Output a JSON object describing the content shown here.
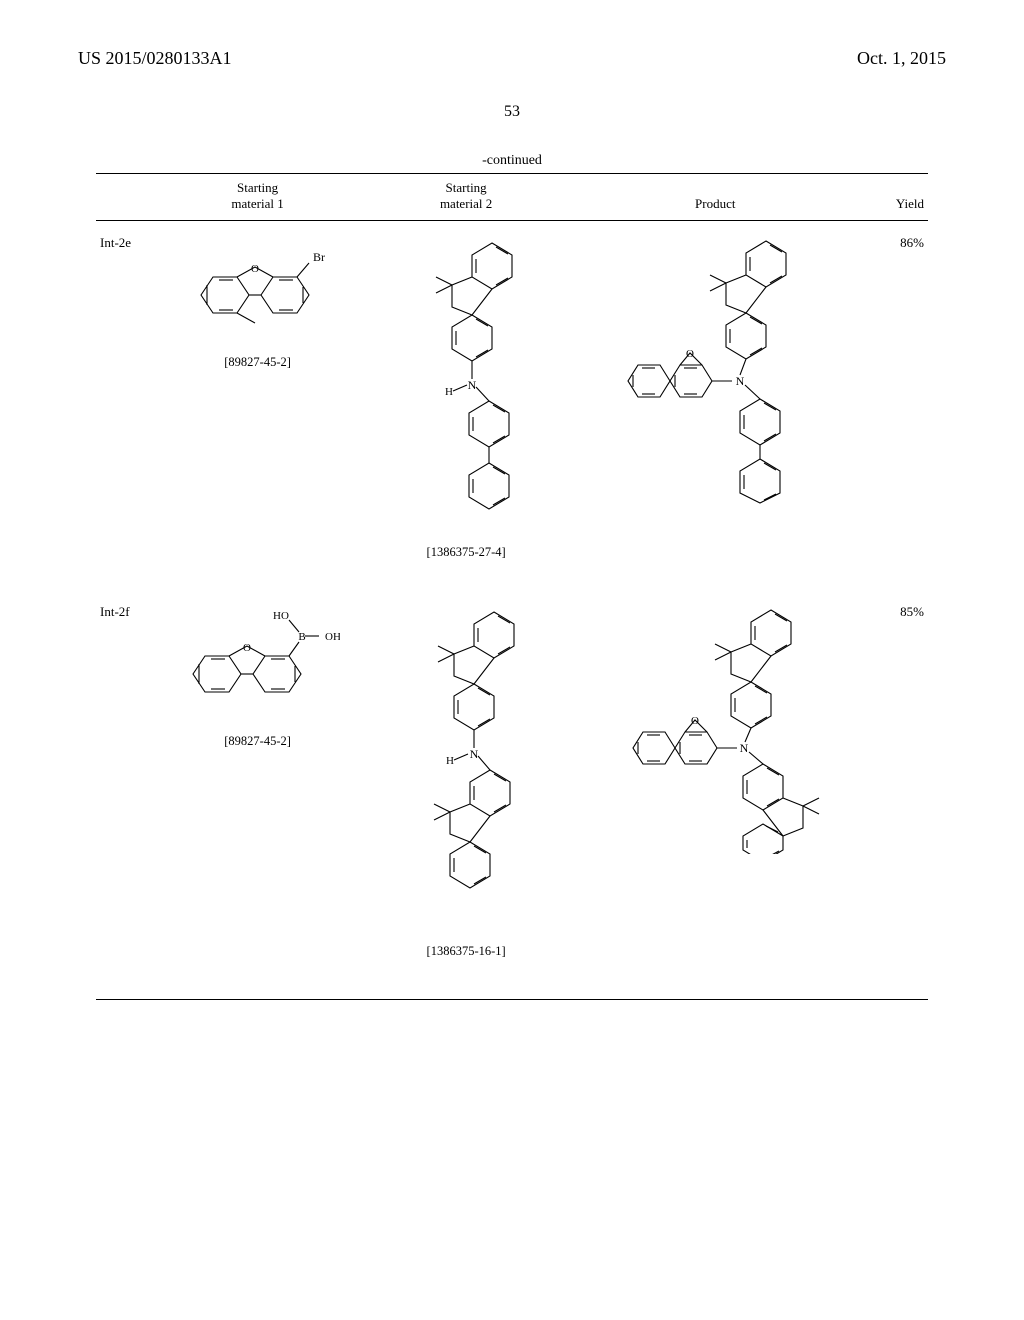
{
  "header": {
    "patent_number": "US 2015/0280133A1",
    "date": "Oct. 1, 2015",
    "page_number": "53"
  },
  "table": {
    "continued_label": "-continued",
    "columns": {
      "sm1": "Starting\nmaterial 1",
      "sm2": "Starting\nmaterial 2",
      "product": "Product",
      "yield": "Yield"
    },
    "rows": [
      {
        "id": "Int-2e",
        "sm1_cas": "[89827-45-2]",
        "sm2_cas": "[1386375-27-4]",
        "yield": "86%"
      },
      {
        "id": "Int-2f",
        "sm1_cas": "[89827-45-2]",
        "sm2_cas": "[1386375-16-1]",
        "yield": "85%"
      }
    ]
  },
  "style": {
    "stroke": "#000000",
    "stroke_width": 1.1,
    "background": "#ffffff",
    "font_family": "Times New Roman"
  }
}
